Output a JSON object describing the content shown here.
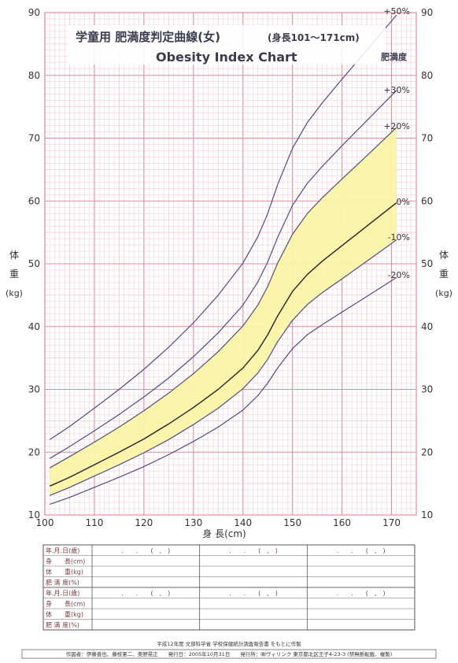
{
  "header": {
    "title_jp": "学童用 肥満度判定曲線(女)",
    "title_range": "(身長101〜171cm)",
    "title_en": "Obesity Index Chart"
  },
  "colors": {
    "grid_minor": "#f4c6cf",
    "grid_major": "#e58a9b",
    "curve": "#4a4f86",
    "curve_mid": "#222230",
    "band": "#fbf3a6"
  },
  "chart_data": {
    "type": "line",
    "title": "学童用 肥満度判定曲線(女)",
    "subtitle": "Obesity Index Chart",
    "xlabel": "身 長(cm)",
    "ylabel_parts": [
      "体",
      "重",
      "(kg)"
    ],
    "xlim": [
      100,
      175
    ],
    "ylim": [
      10,
      90
    ],
    "xticks": [
      100,
      110,
      120,
      130,
      140,
      150,
      160,
      170
    ],
    "yticks": [
      10,
      20,
      30,
      40,
      50,
      60,
      70,
      80,
      90
    ],
    "grid": true,
    "legend_heading": "肥満度",
    "band_between": [
      "-10%",
      "+20%"
    ],
    "x": [
      101,
      105,
      110,
      115,
      120,
      125,
      130,
      135,
      140,
      143,
      145,
      147,
      150,
      153,
      156,
      160,
      165,
      171
    ],
    "series": [
      {
        "name": "+50%",
        "values": [
          22,
          24.1,
          27,
          30,
          33.2,
          36.7,
          40.6,
          45,
          50.1,
          54.3,
          58,
          62.6,
          68.4,
          72.5,
          75.6,
          79.4,
          84,
          89.6
        ]
      },
      {
        "name": "+30%",
        "values": [
          19,
          20.9,
          23.4,
          26,
          28.8,
          31.8,
          35.2,
          39,
          43.4,
          47.1,
          50.3,
          54.2,
          59.3,
          62.8,
          65.5,
          68.8,
          72.8,
          77.6
        ]
      },
      {
        "name": "+20%",
        "values": [
          17.5,
          19.3,
          21.6,
          24,
          26.6,
          29.4,
          32.5,
          36,
          40.1,
          43.4,
          46.4,
          50.1,
          54.7,
          58,
          60.5,
          63.5,
          67.2,
          71.7
        ]
      },
      {
        "name": "0%",
        "values": [
          14.6,
          16,
          18,
          20,
          22.1,
          24.5,
          27.1,
          30,
          33.4,
          36.2,
          38.7,
          41.7,
          45.6,
          48.3,
          50.4,
          52.9,
          56,
          59.7
        ]
      },
      {
        "name": "-10%",
        "values": [
          13.1,
          14.4,
          16.2,
          18,
          19.9,
          22,
          24.4,
          27,
          30.1,
          32.6,
          34.8,
          37.6,
          41,
          43.5,
          45.4,
          47.6,
          50.4,
          53.8
        ]
      },
      {
        "name": "-20%",
        "values": [
          11.7,
          12.8,
          14.4,
          16,
          17.7,
          19.6,
          21.7,
          24,
          26.7,
          29,
          31,
          33.4,
          36.5,
          38.7,
          40.3,
          42.3,
          44.8,
          47.8
        ]
      }
    ]
  },
  "record_table": {
    "rows": [
      "年.月.日(歳)",
      "身　　長(cm)",
      "体　　重(kg)",
      "肥 満 度(%)",
      "年.月.日(歳)",
      "身　　長(cm)",
      "体　　重(kg)",
      "肥 満 度(%)"
    ],
    "date_template": ".　　.　　(　,　)"
  },
  "footer": {
    "line1": "平成12年度 文部科学省 学校保健統計調査報告書 をもとに作製",
    "line2": "作図者：伊藤善也、藤枝憲二、奥野晃正　　発行日：2005年10月31日　　発行所：㈱ヴィリンク 東京都北区王子4-23-3 (禁無断転載、複製)"
  }
}
